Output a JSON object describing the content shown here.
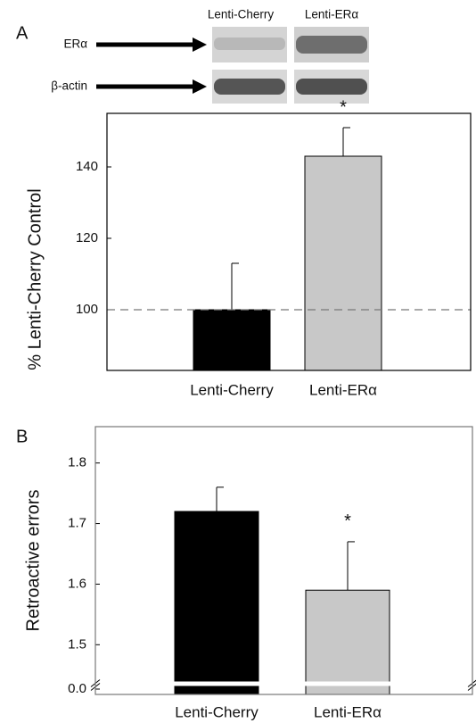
{
  "blot": {
    "columns": [
      "Lenti-Cherry",
      "Lenti-ERα"
    ],
    "rows": [
      "ERα",
      "β-actin"
    ]
  },
  "chart_data": [
    {
      "type": "bar",
      "panel_label": "A",
      "ylabel": "% Lenti-Cherry Control",
      "categories": [
        "Lenti-Cherry",
        "Lenti-ERα"
      ],
      "values": [
        100,
        143
      ],
      "errors": [
        13,
        8
      ],
      "colors": [
        "#000000",
        "#c8c8c8"
      ],
      "ylim": [
        83,
        155
      ],
      "yticks": [
        100,
        120,
        140
      ],
      "reference_line": 100,
      "significance_marks": [
        null,
        "*"
      ]
    },
    {
      "type": "bar",
      "panel_label": "B",
      "ylabel": "Retroactive errors",
      "categories": [
        "Lenti-Cherry",
        "Lenti-ERα"
      ],
      "values": [
        1.72,
        1.59
      ],
      "errors": [
        0.04,
        0.08
      ],
      "colors": [
        "#000000",
        "#c8c8c8"
      ],
      "ylim": [
        1.44,
        1.86
      ],
      "axis_break": true,
      "yticks": [
        {
          "value": 0,
          "label": "0.0"
        },
        1.5,
        1.6,
        1.7,
        1.8
      ],
      "significance_marks": [
        null,
        "*"
      ]
    }
  ]
}
